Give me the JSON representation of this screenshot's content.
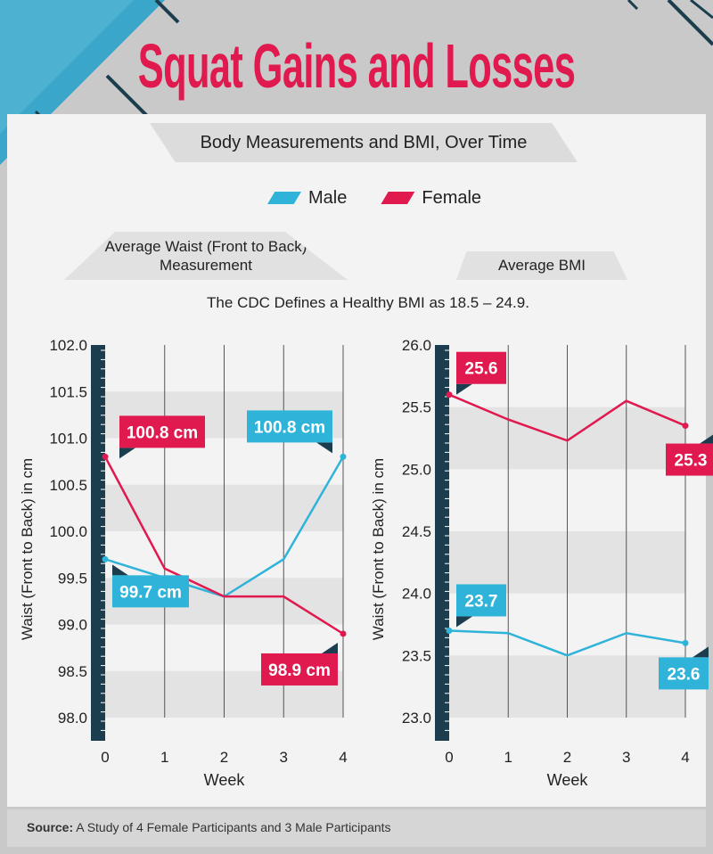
{
  "title": "Squat Gains and Losses",
  "subtitle": "Body Measurements and BMI, Over Time",
  "legend": {
    "male": "Male",
    "female": "Female"
  },
  "colors": {
    "male": "#2fb3d9",
    "female": "#e0194f",
    "axis_bar": "#1c3d4d",
    "grid_band": "#e3e3e3"
  },
  "waist_heading": "Average Waist (Front to Back) Measurement",
  "bmi_heading": "Average BMI",
  "cdc_note": "The CDC Defines a Healthy BMI as 18.5 – 24.9.",
  "source": {
    "label": "Source:",
    "text": " A Study of 4 Female Participants and 3 Male Participants"
  },
  "chart_data": [
    {
      "type": "line",
      "title": "Average Waist (Front to Back) Measurement",
      "xlabel": "Week",
      "ylabel": "Waist (Front to Back) in cm",
      "x": [
        0,
        1,
        2,
        3,
        4
      ],
      "xticks": [
        "0",
        "1",
        "2",
        "3",
        "4"
      ],
      "ylim": [
        98.0,
        102.0
      ],
      "yticks": [
        "98.0",
        "98.5",
        "99.0",
        "99.5",
        "100.0",
        "100.5",
        "101.0",
        "101.5",
        "102.0"
      ],
      "series": [
        {
          "name": "Male",
          "values": [
            99.7,
            99.5,
            99.3,
            99.7,
            100.8
          ]
        },
        {
          "name": "Female",
          "values": [
            100.8,
            99.6,
            99.3,
            99.3,
            98.9
          ]
        }
      ],
      "annotations": [
        {
          "series": "Female",
          "x": 0,
          "text": "100.8 cm"
        },
        {
          "series": "Male",
          "x": 4,
          "text": "100.8 cm"
        },
        {
          "series": "Male",
          "x": 0,
          "text": "99.7 cm"
        },
        {
          "series": "Female",
          "x": 4,
          "text": "98.9 cm"
        }
      ]
    },
    {
      "type": "line",
      "title": "Average BMI",
      "xlabel": "Week",
      "ylabel": "Waist (Front to Back) in cm",
      "x": [
        0,
        1,
        2,
        3,
        4
      ],
      "xticks": [
        "0",
        "1",
        "2",
        "3",
        "4"
      ],
      "ylim": [
        23.0,
        26.0
      ],
      "yticks": [
        "23.0",
        "23.5",
        "24.0",
        "24.5",
        "25.0",
        "25.5",
        "26.0"
      ],
      "series": [
        {
          "name": "Male",
          "values": [
            23.7,
            23.68,
            23.5,
            23.68,
            23.6
          ]
        },
        {
          "name": "Female",
          "values": [
            25.6,
            25.4,
            25.23,
            25.55,
            25.35
          ]
        }
      ],
      "annotations": [
        {
          "series": "Female",
          "x": 0,
          "text": "25.6"
        },
        {
          "series": "Female",
          "x": 4,
          "text": "25.3"
        },
        {
          "series": "Male",
          "x": 0,
          "text": "23.7"
        },
        {
          "series": "Male",
          "x": 4,
          "text": "23.6"
        }
      ]
    }
  ]
}
